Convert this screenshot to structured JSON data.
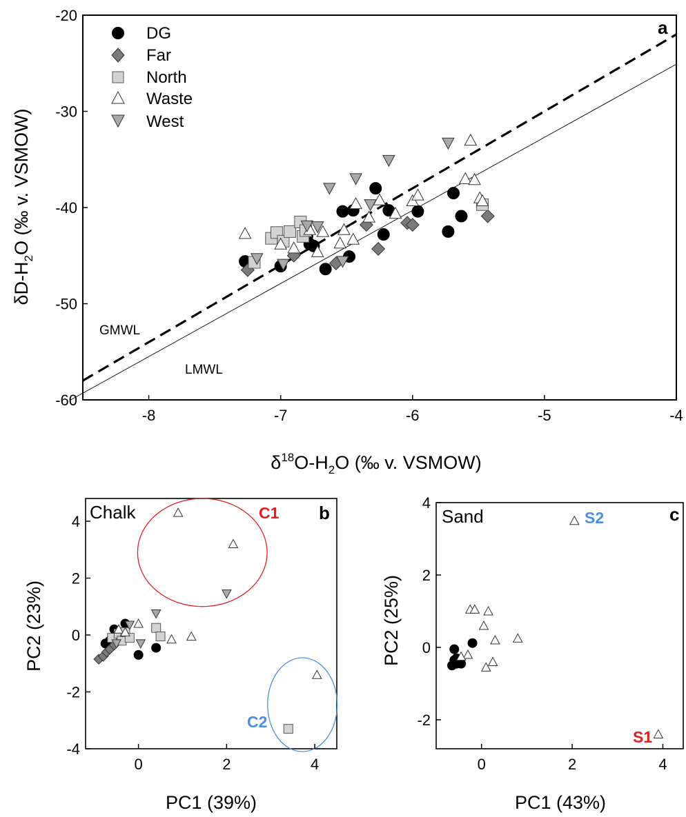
{
  "chart_data": [
    {
      "type": "scatter",
      "panel": "a",
      "xlabel": "δ18O-H2O (‰ v. VSMOW)",
      "ylabel": "δD-H2O (‰ v. VSMOW)",
      "xlim": [
        -8.5,
        -4
      ],
      "ylim": [
        -60,
        -20
      ],
      "xticks": [
        -8,
        -7,
        -6,
        -5,
        -4
      ],
      "yticks": [
        -20,
        -30,
        -40,
        -50,
        -60
      ],
      "grid": false,
      "legend_placement": "top-left",
      "lines": [
        {
          "name": "GMWL",
          "style": "dashed",
          "slope": 8,
          "intercept": 10
        },
        {
          "name": "LMWL",
          "style": "solid-thin",
          "slope": 7.6,
          "intercept": 5.3
        }
      ],
      "series": [
        {
          "name": "DG",
          "marker": "circle",
          "fill": "#000000",
          "x": [
            -7.27,
            -7.0,
            -6.8,
            -6.75,
            -6.78,
            -6.66,
            -6.53,
            -6.48,
            -6.45,
            -6.28,
            -6.22,
            -6.18,
            -5.96,
            -5.73,
            -5.69,
            -5.63
          ],
          "y": [
            -45.6,
            -46.1,
            -43.0,
            -44.0,
            -43.8,
            -46.4,
            -40.4,
            -45.1,
            -40.3,
            -38.0,
            -42.8,
            -40.3,
            -40.4,
            -42.5,
            -38.5,
            -40.9
          ]
        },
        {
          "name": "Far",
          "marker": "diamond",
          "fill": "#7a7a7a",
          "x": [
            -7.25,
            -6.9,
            -6.58,
            -6.35,
            -6.26,
            -6.04,
            -6.0,
            -5.43
          ],
          "y": [
            -46.5,
            -45.0,
            -45.8,
            -41.8,
            -44.3,
            -41.6,
            -41.8,
            -40.9
          ]
        },
        {
          "name": "North",
          "marker": "square",
          "fill": "#d3d3d3",
          "x": [
            -7.2,
            -7.07,
            -7.03,
            -6.98,
            -6.93,
            -6.85,
            -6.83,
            -6.81,
            -5.47
          ],
          "y": [
            -45.7,
            -43.2,
            -42.6,
            -43.5,
            -42.5,
            -41.5,
            -43.0,
            -42.4,
            -39.7
          ]
        },
        {
          "name": "Waste",
          "marker": "triangle-up",
          "fill": "#ffffff",
          "x": [
            -7.27,
            -7.0,
            -6.9,
            -6.78,
            -6.72,
            -6.68,
            -6.55,
            -6.52,
            -6.45,
            -6.43,
            -6.33,
            -6.25,
            -6.13,
            -6.0,
            -5.96,
            -5.6,
            -5.56,
            -5.53,
            -5.49,
            -5.47
          ],
          "y": [
            -42.7,
            -43.8,
            -44.2,
            -42.3,
            -44.6,
            -42.5,
            -43.7,
            -42.3,
            -43.3,
            -39.6,
            -41.0,
            -39.2,
            -40.6,
            -39.3,
            -38.7,
            -37.0,
            -33.0,
            -37.1,
            -39.0,
            -39.3
          ]
        },
        {
          "name": "West",
          "marker": "triangle-down",
          "fill": "#a9a9a9",
          "x": [
            -7.18,
            -6.98,
            -6.8,
            -6.72,
            -6.63,
            -6.53,
            -6.43,
            -6.32,
            -6.18,
            -5.73
          ],
          "y": [
            -45.3,
            -45.9,
            -41.9,
            -42.0,
            -38.0,
            -45.6,
            -37.0,
            -39.7,
            -35.1,
            -33.3
          ]
        }
      ]
    },
    {
      "type": "scatter",
      "panel": "b",
      "title": "Chalk",
      "xlabel": "PC1 (39%)",
      "ylabel": "PC2 (23%)",
      "xlim": [
        -1.2,
        4.5
      ],
      "ylim": [
        -4,
        4.8
      ],
      "xticks": [
        0,
        2,
        4
      ],
      "yticks": [
        4,
        2,
        0,
        -2,
        -4
      ],
      "grid": false,
      "clusters": [
        {
          "label": "C1",
          "color": "#e02020",
          "cx": 1.45,
          "cy": 2.9,
          "rx": 1.47,
          "ry": 1.9
        },
        {
          "label": "C2",
          "color": "#4a90e2",
          "cx": 3.72,
          "cy": -2.45,
          "rx": 0.79,
          "ry": 1.65
        }
      ],
      "series": [
        {
          "name": "DG",
          "marker": "circle",
          "fill": "#000000",
          "x": [
            -0.75,
            -0.65,
            -0.55,
            -0.3,
            0.0,
            0.4
          ],
          "y": [
            -0.3,
            -0.2,
            0.2,
            0.4,
            -0.7,
            -0.45
          ]
        },
        {
          "name": "Far",
          "marker": "diamond",
          "fill": "#7a7a7a",
          "x": [
            -0.9,
            -0.8,
            -0.72,
            -0.65,
            -0.55
          ],
          "y": [
            -0.85,
            -0.75,
            -0.6,
            -0.5,
            -0.35
          ]
        },
        {
          "name": "North",
          "marker": "square",
          "fill": "#d3d3d3",
          "x": [
            -0.6,
            -0.45,
            -0.38,
            -0.3,
            -0.2,
            0.4,
            0.5,
            3.4
          ],
          "y": [
            -0.1,
            0.05,
            -0.2,
            0.1,
            -0.1,
            0.25,
            -0.05,
            -3.3
          ]
        },
        {
          "name": "Waste",
          "marker": "triangle-up",
          "fill": "#ffffff",
          "x": [
            -0.45,
            -0.3,
            0.0,
            0.75,
            1.2,
            0.9,
            2.15,
            4.05
          ],
          "y": [
            0.2,
            0.1,
            0.4,
            -0.15,
            -0.05,
            4.3,
            3.2,
            -1.4
          ]
        },
        {
          "name": "West",
          "marker": "triangle-down",
          "fill": "#a9a9a9",
          "x": [
            -0.5,
            -0.2,
            0.05,
            0.4,
            2.0
          ],
          "y": [
            -0.3,
            0.35,
            -0.3,
            0.75,
            1.45
          ]
        }
      ]
    },
    {
      "type": "scatter",
      "panel": "c",
      "title": "Sand",
      "xlabel": "PC1 (43%)",
      "ylabel": "PC2 (25%)",
      "xlim": [
        -1.0,
        4.45
      ],
      "ylim": [
        -2.8,
        4
      ],
      "xticks": [
        0,
        2,
        4
      ],
      "yticks": [
        4,
        2,
        0,
        -2
      ],
      "grid": false,
      "point_labels": [
        {
          "label": "S2",
          "color": "#4a90e2",
          "x": 2.05,
          "y": 3.5
        },
        {
          "label": "S1",
          "color": "#e02020",
          "x": 3.9,
          "y": -2.4
        }
      ],
      "series": [
        {
          "name": "DG",
          "marker": "circle",
          "fill": "#000000",
          "x": [
            -0.65,
            -0.6,
            -0.55,
            -0.5,
            -0.45,
            -0.6,
            -0.2,
            -0.55
          ],
          "y": [
            -0.5,
            -0.35,
            -0.45,
            -0.4,
            -0.45,
            -0.05,
            0.12,
            -0.3
          ]
        },
        {
          "name": "Waste",
          "marker": "triangle-up",
          "fill": "#ffffff",
          "x": [
            -0.25,
            -0.15,
            0.05,
            0.15,
            0.3,
            0.8,
            0.1,
            0.25,
            2.05,
            3.9,
            -0.3,
            -0.45
          ],
          "y": [
            1.05,
            1.05,
            0.6,
            1.0,
            0.2,
            0.25,
            -0.55,
            -0.4,
            3.5,
            -2.4,
            -0.2,
            -0.25
          ]
        }
      ]
    }
  ],
  "panel_a": {
    "letter": "a",
    "ylabel_delta": "δ",
    "ylabel_rest1": "D-H",
    "ylabel_sub": "2",
    "ylabel_rest2": "O (‰ v. VSMOW)",
    "xlabel_delta": "δ",
    "xlabel_sup": "18",
    "xlabel_rest1": "O-H",
    "xlabel_sub": "2",
    "xlabel_rest2": "O (‰ v. VSMOW)",
    "gmwl_label": "GMWL",
    "lmwl_label": "LMWL",
    "xtick_labels": [
      "-8",
      "-7",
      "-6",
      "-5",
      "-4"
    ],
    "ytick_labels": [
      "-20",
      "-30",
      "-40",
      "-50",
      "-60"
    ],
    "legend": [
      "DG",
      "Far",
      "North",
      "Waste",
      "West"
    ]
  },
  "panel_b": {
    "letter": "b",
    "title": "Chalk",
    "xlabel": "PC1 (39%)",
    "ylabel": "PC2 (23%)",
    "c1": "C1",
    "c2": "C2",
    "xtick_labels": [
      "0",
      "2",
      "4"
    ],
    "ytick_labels": [
      "4",
      "2",
      "0",
      "-2",
      "-4"
    ]
  },
  "panel_c": {
    "letter": "c",
    "title": "Sand",
    "xlabel": "PC1 (43%)",
    "ylabel": "PC2 (25%)",
    "s1": "S1",
    "s2": "S2",
    "xtick_labels": [
      "0",
      "2",
      "4"
    ],
    "ytick_labels": [
      "4",
      "2",
      "0",
      "-2"
    ]
  },
  "colors": {
    "c1_red": "#e02020",
    "c2_blue": "#4a90e2",
    "dg": "#000000",
    "far": "#7a7a7a",
    "north": "#d3d3d3",
    "waste": "#ffffff",
    "west": "#a9a9a9"
  }
}
